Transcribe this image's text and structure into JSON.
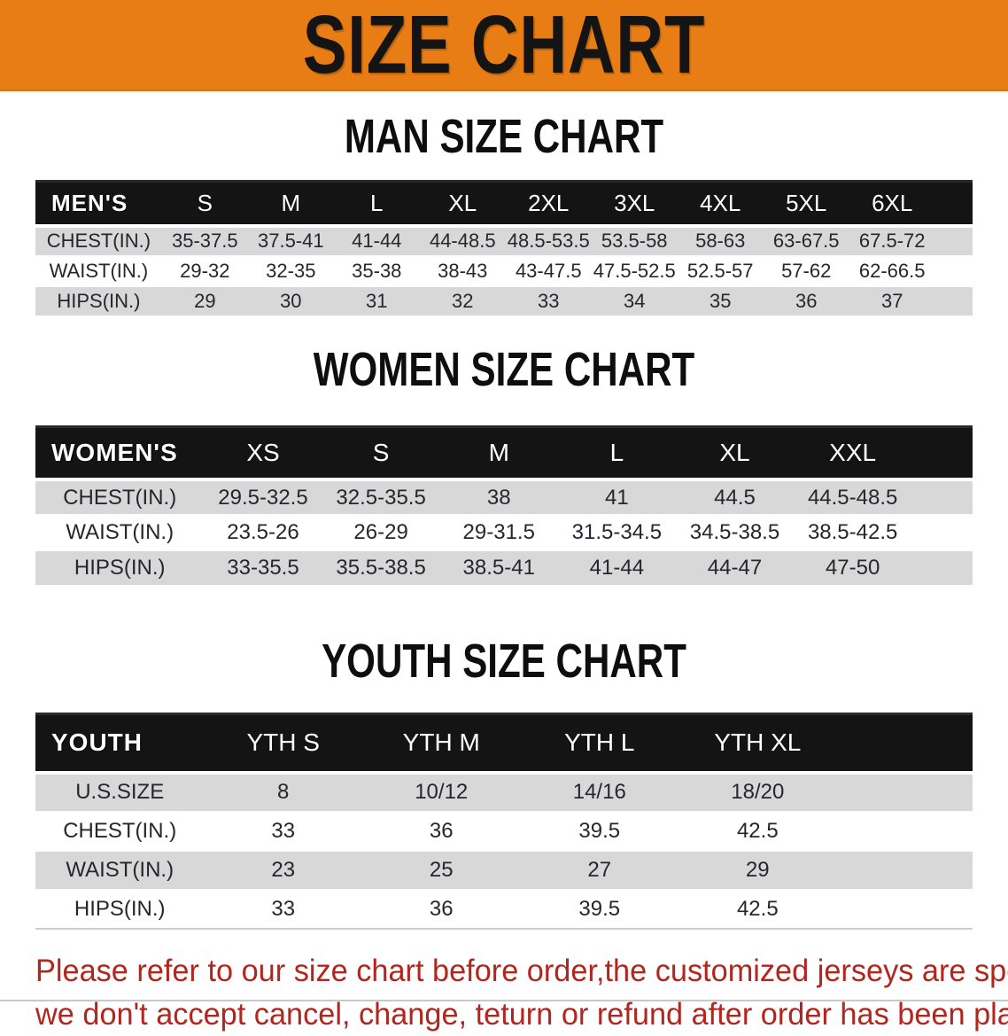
{
  "banner": {
    "title": "SIZE CHART"
  },
  "sections": [
    {
      "title": "MAN SIZE CHART",
      "header_label": "MEN'S",
      "columns": [
        "S",
        "M",
        "L",
        "XL",
        "2XL",
        "3XL",
        "4XL",
        "5XL",
        "6XL"
      ],
      "rows": [
        {
          "label": "CHEST(IN.)",
          "values": [
            "35-37.5",
            "37.5-41",
            "41-44",
            "44-48.5",
            "48.5-53.5",
            "53.5-58",
            "58-63",
            "63-67.5",
            "67.5-72"
          ]
        },
        {
          "label": "WAIST(IN.)",
          "values": [
            "29-32",
            "32-35",
            "35-38",
            "38-43",
            "43-47.5",
            "47.5-52.5",
            "52.5-57",
            "57-62",
            "62-66.5"
          ]
        },
        {
          "label": "HIPS(IN.)",
          "values": [
            "29",
            "30",
            "31",
            "32",
            "33",
            "34",
            "35",
            "36",
            "37"
          ]
        }
      ]
    },
    {
      "title": "WOMEN SIZE CHART",
      "header_label": "WOMEN'S",
      "columns": [
        "XS",
        "S",
        "M",
        "L",
        "XL",
        "XXL"
      ],
      "rows": [
        {
          "label": "CHEST(IN.)",
          "values": [
            "29.5-32.5",
            "32.5-35.5",
            "38",
            "41",
            "44.5",
            "44.5-48.5"
          ]
        },
        {
          "label": "WAIST(IN.)",
          "values": [
            "23.5-26",
            "26-29",
            "29-31.5",
            "31.5-34.5",
            "34.5-38.5",
            "38.5-42.5"
          ]
        },
        {
          "label": "HIPS(IN.)",
          "values": [
            "33-35.5",
            "35.5-38.5",
            "38.5-41",
            "41-44",
            "44-47",
            "47-50"
          ]
        }
      ]
    },
    {
      "title": "YOUTH SIZE CHART",
      "header_label": "YOUTH",
      "columns": [
        "YTH S",
        "YTH M",
        "YTH L",
        "YTH XL"
      ],
      "rows": [
        {
          "label": "U.S.SIZE",
          "values": [
            "8",
            "10/12",
            "14/16",
            "18/20"
          ]
        },
        {
          "label": "CHEST(IN.)",
          "values": [
            "33",
            "36",
            "39.5",
            "42.5"
          ]
        },
        {
          "label": "WAIST(IN.)",
          "values": [
            "23",
            "25",
            "27",
            "29"
          ]
        },
        {
          "label": "HIPS(IN.)",
          "values": [
            "33",
            "36",
            "39.5",
            "42.5"
          ]
        }
      ]
    }
  ],
  "footer": {
    "line1": "Please refer to our size chart before order,the customized jerseys are special products,",
    "line2": "we don't accept cancel, change, teturn or refund after order has been placed!"
  },
  "colors": {
    "banner_bg": "#E87D15",
    "header_bar": "#141414",
    "row_stripe": "#D8D8D8",
    "footer_text": "#B1271F"
  }
}
